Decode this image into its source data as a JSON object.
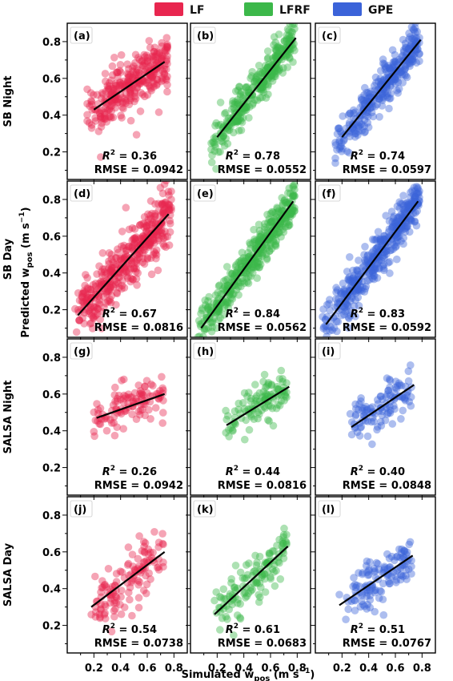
{
  "legend": {
    "position": "top-center",
    "items": [
      {
        "label": "LF",
        "color": "#e8264f"
      },
      {
        "label": "LFRF",
        "color": "#3cb84a"
      },
      {
        "label": "GPE",
        "color": "#3b63d9"
      }
    ]
  },
  "axes": {
    "xlabel": "Simulated w",
    "xlabel_sub": "pos",
    "xlabel_unit": " (m s",
    "xlabel_sup": "−1",
    "xlabel_close": ")",
    "ylabel": "Predicted w",
    "ylabel_sub": "pos",
    "ylabel_unit": " (m s",
    "ylabel_sup": "−1",
    "ylabel_close": ")",
    "xlim": [
      0.0,
      0.9
    ],
    "ylim": [
      0.05,
      0.9
    ],
    "xticks": [
      "0.2",
      "0.4",
      "0.6",
      "0.8"
    ],
    "yticks": [
      "0.2",
      "0.4",
      "0.6",
      "0.8"
    ]
  },
  "rows": [
    "SB Night",
    "SB Day",
    "SALSA Night",
    "SALSA Day"
  ],
  "chart_data": [
    {
      "type": "scatter",
      "panel": "(a)",
      "row": "SB Night",
      "method": "LF",
      "r2": "0.36",
      "rmse": "0.0942",
      "fit_x": [
        0.2,
        0.73
      ],
      "fit_y": [
        0.43,
        0.69
      ],
      "cloud": {
        "x": [
          0.15,
          0.75
        ],
        "y_spread": 0.07,
        "n": 320
      }
    },
    {
      "type": "scatter",
      "panel": "(b)",
      "row": "SB Night",
      "method": "LFRF",
      "r2": "0.78",
      "rmse": "0.0552",
      "fit_x": [
        0.2,
        0.79
      ],
      "fit_y": [
        0.28,
        0.82
      ],
      "cloud": {
        "x": [
          0.15,
          0.78
        ],
        "y_spread": 0.055,
        "n": 320
      }
    },
    {
      "type": "scatter",
      "panel": "(c)",
      "row": "SB Night",
      "method": "GPE",
      "r2": "0.74",
      "rmse": "0.0597",
      "fit_x": [
        0.2,
        0.79
      ],
      "fit_y": [
        0.28,
        0.81
      ],
      "cloud": {
        "x": [
          0.15,
          0.78
        ],
        "y_spread": 0.06,
        "n": 320
      }
    },
    {
      "type": "scatter",
      "panel": "(d)",
      "row": "SB Day",
      "method": "LF",
      "r2": "0.67",
      "rmse": "0.0816",
      "fit_x": [
        0.08,
        0.76
      ],
      "fit_y": [
        0.17,
        0.72
      ],
      "cloud": {
        "x": [
          0.05,
          0.78
        ],
        "y_spread": 0.075,
        "n": 420
      }
    },
    {
      "type": "scatter",
      "panel": "(e)",
      "row": "SB Day",
      "method": "LFRF",
      "r2": "0.84",
      "rmse": "0.0562",
      "fit_x": [
        0.08,
        0.77
      ],
      "fit_y": [
        0.1,
        0.79
      ],
      "cloud": {
        "x": [
          0.05,
          0.78
        ],
        "y_spread": 0.055,
        "n": 420
      }
    },
    {
      "type": "scatter",
      "panel": "(f)",
      "row": "SB Day",
      "method": "GPE",
      "r2": "0.83",
      "rmse": "0.0592",
      "fit_x": [
        0.08,
        0.77
      ],
      "fit_y": [
        0.12,
        0.79
      ],
      "cloud": {
        "x": [
          0.05,
          0.78
        ],
        "y_spread": 0.06,
        "n": 420
      }
    },
    {
      "type": "scatter",
      "panel": "(g)",
      "row": "SALSA Night",
      "method": "LF",
      "r2": "0.26",
      "rmse": "0.0942",
      "fit_x": [
        0.22,
        0.73
      ],
      "fit_y": [
        0.47,
        0.6
      ],
      "cloud": {
        "x": [
          0.2,
          0.72
        ],
        "y_spread": 0.055,
        "n": 110
      }
    },
    {
      "type": "scatter",
      "panel": "(h)",
      "row": "SALSA Night",
      "method": "LFRF",
      "r2": "0.44",
      "rmse": "0.0816",
      "fit_x": [
        0.27,
        0.74
      ],
      "fit_y": [
        0.43,
        0.64
      ],
      "cloud": {
        "x": [
          0.25,
          0.72
        ],
        "y_spread": 0.06,
        "n": 110
      }
    },
    {
      "type": "scatter",
      "panel": "(i)",
      "row": "SALSA Night",
      "method": "GPE",
      "r2": "0.40",
      "rmse": "0.0848",
      "fit_x": [
        0.27,
        0.74
      ],
      "fit_y": [
        0.42,
        0.65
      ],
      "cloud": {
        "x": [
          0.25,
          0.72
        ],
        "y_spread": 0.065,
        "n": 110
      }
    },
    {
      "type": "scatter",
      "panel": "(j)",
      "row": "SALSA Day",
      "method": "LF",
      "r2": "0.54",
      "rmse": "0.0738",
      "fit_x": [
        0.18,
        0.73
      ],
      "fit_y": [
        0.3,
        0.6
      ],
      "cloud": {
        "x": [
          0.18,
          0.72
        ],
        "y_spread": 0.065,
        "n": 130
      }
    },
    {
      "type": "scatter",
      "panel": "(k)",
      "row": "SALSA Day",
      "method": "LFRF",
      "r2": "0.61",
      "rmse": "0.0683",
      "fit_x": [
        0.18,
        0.73
      ],
      "fit_y": [
        0.26,
        0.63
      ],
      "cloud": {
        "x": [
          0.18,
          0.72
        ],
        "y_spread": 0.065,
        "n": 130
      }
    },
    {
      "type": "scatter",
      "panel": "(l)",
      "row": "SALSA Day",
      "method": "GPE",
      "r2": "0.51",
      "rmse": "0.0767",
      "fit_x": [
        0.18,
        0.73
      ],
      "fit_y": [
        0.31,
        0.58
      ],
      "cloud": {
        "x": [
          0.18,
          0.72
        ],
        "y_spread": 0.06,
        "n": 130
      }
    }
  ]
}
